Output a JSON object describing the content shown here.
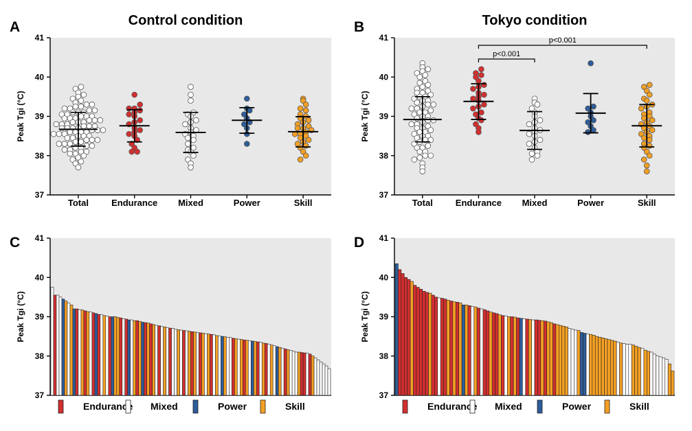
{
  "colors": {
    "Endurance": "#d32f2f",
    "Mixed": "#ffffff",
    "Power": "#2e5d9a",
    "Skill": "#f4a024",
    "Total": "#ffffff"
  },
  "legend": [
    "Endurance",
    "Mixed",
    "Power",
    "Skill"
  ],
  "chart_data": [
    {
      "panel": "A",
      "type": "scatter",
      "title": "Control condition",
      "ylabel": "Peak Tgi (°C)",
      "ylim": [
        37,
        41
      ],
      "yticks": [
        "37",
        "38",
        "39",
        "40",
        "41"
      ],
      "categories": [
        "Total",
        "Endurance",
        "Mixed",
        "Power",
        "Skill"
      ],
      "series": [
        {
          "name": "Total",
          "mean": 38.67,
          "sd_low": 38.24,
          "sd_high": 39.1,
          "values": [
            37.7,
            37.8,
            37.85,
            37.9,
            37.95,
            38.0,
            38.05,
            38.05,
            38.1,
            38.1,
            38.15,
            38.15,
            38.2,
            38.2,
            38.25,
            38.25,
            38.3,
            38.3,
            38.3,
            38.35,
            38.35,
            38.4,
            38.4,
            38.4,
            38.45,
            38.45,
            38.5,
            38.5,
            38.5,
            38.55,
            38.55,
            38.55,
            38.6,
            38.6,
            38.6,
            38.6,
            38.65,
            38.65,
            38.65,
            38.7,
            38.7,
            38.7,
            38.7,
            38.75,
            38.75,
            38.75,
            38.8,
            38.8,
            38.8,
            38.85,
            38.85,
            38.85,
            38.9,
            38.9,
            38.9,
            38.95,
            38.95,
            38.95,
            39.0,
            39.0,
            39.0,
            39.05,
            39.05,
            39.1,
            39.1,
            39.1,
            39.15,
            39.15,
            39.2,
            39.2,
            39.25,
            39.25,
            39.3,
            39.3,
            39.35,
            39.4,
            39.45,
            39.5,
            39.55,
            39.6,
            39.7,
            39.75
          ]
        },
        {
          "name": "Endurance",
          "mean": 38.76,
          "sd_low": 38.35,
          "sd_high": 39.17,
          "values": [
            38.1,
            38.1,
            38.2,
            38.3,
            38.4,
            38.5,
            38.55,
            38.6,
            38.65,
            38.7,
            38.8,
            38.85,
            38.9,
            39.0,
            39.05,
            39.1,
            39.15,
            39.2,
            39.2,
            39.3,
            39.55
          ]
        },
        {
          "name": "Mixed",
          "mean": 38.59,
          "sd_low": 38.08,
          "sd_high": 39.1,
          "values": [
            37.7,
            37.8,
            37.9,
            38.0,
            38.1,
            38.15,
            38.2,
            38.3,
            38.4,
            38.45,
            38.5,
            38.55,
            38.6,
            38.65,
            38.7,
            38.8,
            38.85,
            38.9,
            39.0,
            39.05,
            39.1,
            39.4,
            39.55,
            39.75
          ]
        },
        {
          "name": "Power",
          "mean": 38.9,
          "sd_low": 38.57,
          "sd_high": 39.22,
          "values": [
            38.3,
            38.55,
            38.7,
            38.8,
            38.85,
            38.95,
            39.05,
            39.15,
            39.2,
            39.45
          ]
        },
        {
          "name": "Skill",
          "mean": 38.61,
          "sd_low": 38.22,
          "sd_high": 38.99,
          "values": [
            37.9,
            38.0,
            38.1,
            38.2,
            38.25,
            38.3,
            38.35,
            38.4,
            38.45,
            38.5,
            38.55,
            38.55,
            38.6,
            38.65,
            38.7,
            38.7,
            38.75,
            38.8,
            38.85,
            38.9,
            38.95,
            39.0,
            39.05,
            39.15,
            39.2,
            39.3,
            39.4,
            39.45
          ]
        }
      ]
    },
    {
      "panel": "B",
      "type": "scatter",
      "title": "Tokyo condition",
      "ylabel": "Peak Tgi (°C)",
      "ylim": [
        37,
        41
      ],
      "yticks": [
        "37",
        "38",
        "39",
        "40",
        "41"
      ],
      "categories": [
        "Total",
        "Endurance",
        "Mixed",
        "Power",
        "Skill"
      ],
      "comparisons": [
        {
          "from": "Endurance",
          "to": "Mixed",
          "label": "p<0.001"
        },
        {
          "from": "Endurance",
          "to": "Skill",
          "label": "p<0.001"
        }
      ],
      "series": [
        {
          "name": "Total",
          "mean": 38.92,
          "sd_low": 38.35,
          "sd_high": 39.5,
          "values": [
            37.6,
            37.7,
            37.8,
            37.9,
            37.95,
            38.0,
            38.0,
            38.1,
            38.1,
            38.2,
            38.2,
            38.25,
            38.3,
            38.35,
            38.4,
            38.4,
            38.45,
            38.5,
            38.5,
            38.55,
            38.6,
            38.6,
            38.65,
            38.7,
            38.7,
            38.75,
            38.8,
            38.8,
            38.85,
            38.9,
            38.9,
            38.95,
            39.0,
            39.0,
            39.05,
            39.1,
            39.1,
            39.15,
            39.2,
            39.2,
            39.25,
            39.3,
            39.3,
            39.35,
            39.4,
            39.4,
            39.45,
            39.5,
            39.5,
            39.55,
            39.6,
            39.6,
            39.65,
            39.7,
            39.75,
            39.8,
            39.85,
            39.9,
            40.0,
            40.05,
            40.1,
            40.15,
            40.2,
            40.25,
            40.35
          ]
        },
        {
          "name": "Endurance",
          "mean": 39.38,
          "sd_low": 38.92,
          "sd_high": 39.83,
          "values": [
            38.6,
            38.7,
            38.8,
            38.9,
            38.95,
            39.05,
            39.1,
            39.2,
            39.25,
            39.3,
            39.4,
            39.45,
            39.5,
            39.55,
            39.6,
            39.7,
            39.75,
            39.8,
            39.9,
            40.0,
            40.05,
            40.1,
            40.2
          ]
        },
        {
          "name": "Mixed",
          "mean": 38.64,
          "sd_low": 38.16,
          "sd_high": 39.12,
          "values": [
            37.9,
            38.0,
            38.05,
            38.1,
            38.2,
            38.3,
            38.35,
            38.4,
            38.5,
            38.55,
            38.6,
            38.65,
            38.7,
            38.8,
            38.85,
            38.9,
            39.0,
            39.1,
            39.2,
            39.3,
            39.35,
            39.45
          ]
        },
        {
          "name": "Power",
          "mean": 39.08,
          "sd_low": 38.58,
          "sd_high": 39.58,
          "values": [
            38.6,
            38.65,
            38.75,
            38.85,
            38.9,
            39.0,
            39.1,
            39.2,
            39.25,
            40.35
          ]
        },
        {
          "name": "Skill",
          "mean": 38.76,
          "sd_low": 38.22,
          "sd_high": 39.3,
          "values": [
            37.6,
            37.75,
            37.9,
            38.0,
            38.1,
            38.2,
            38.25,
            38.3,
            38.4,
            38.45,
            38.5,
            38.55,
            38.6,
            38.65,
            38.7,
            38.75,
            38.8,
            38.85,
            38.9,
            38.95,
            39.0,
            39.05,
            39.1,
            39.2,
            39.25,
            39.3,
            39.4,
            39.45,
            39.55,
            39.65,
            39.75,
            39.8
          ]
        }
      ]
    },
    {
      "panel": "C",
      "type": "bar",
      "title": "",
      "ylabel": "Peak Tgi (°C)",
      "ylim": [
        37,
        41
      ],
      "yticks": [
        "37",
        "38",
        "39",
        "40",
        "41"
      ],
      "sorted_descending": true,
      "bars": [
        [
          "M",
          39.75
        ],
        [
          "E",
          39.55
        ],
        [
          "M",
          39.55
        ],
        [
          "M",
          39.5
        ],
        [
          "P",
          39.45
        ],
        [
          "S",
          39.4
        ],
        [
          "M",
          39.35
        ],
        [
          "S",
          39.3
        ],
        [
          "P",
          39.2
        ],
        [
          "E",
          39.2
        ],
        [
          "M",
          39.18
        ],
        [
          "S",
          39.17
        ],
        [
          "E",
          39.15
        ],
        [
          "S",
          39.13
        ],
        [
          "M",
          39.12
        ],
        [
          "E",
          39.1
        ],
        [
          "P",
          39.08
        ],
        [
          "E",
          39.06
        ],
        [
          "M",
          39.05
        ],
        [
          "S",
          39.03
        ],
        [
          "M",
          39.02
        ],
        [
          "E",
          39.0
        ],
        [
          "P",
          39.0
        ],
        [
          "S",
          39.0
        ],
        [
          "S",
          38.98
        ],
        [
          "E",
          38.97
        ],
        [
          "M",
          38.95
        ],
        [
          "E",
          38.94
        ],
        [
          "P",
          38.92
        ],
        [
          "M",
          38.92
        ],
        [
          "S",
          38.9
        ],
        [
          "E",
          38.9
        ],
        [
          "S",
          38.88
        ],
        [
          "P",
          38.86
        ],
        [
          "E",
          38.85
        ],
        [
          "S",
          38.84
        ],
        [
          "E",
          38.82
        ],
        [
          "S",
          38.8
        ],
        [
          "M",
          38.78
        ],
        [
          "E",
          38.77
        ],
        [
          "M",
          38.75
        ],
        [
          "S",
          38.74
        ],
        [
          "M",
          38.72
        ],
        [
          "E",
          38.71
        ],
        [
          "M",
          38.7
        ],
        [
          "M",
          38.68
        ],
        [
          "S",
          38.67
        ],
        [
          "M",
          38.66
        ],
        [
          "E",
          38.65
        ],
        [
          "M",
          38.64
        ],
        [
          "S",
          38.63
        ],
        [
          "E",
          38.62
        ],
        [
          "S",
          38.61
        ],
        [
          "M",
          38.6
        ],
        [
          "E",
          38.59
        ],
        [
          "S",
          38.58
        ],
        [
          "M",
          38.57
        ],
        [
          "S",
          38.56
        ],
        [
          "E",
          38.55
        ],
        [
          "M",
          38.54
        ],
        [
          "S",
          38.52
        ],
        [
          "M",
          38.51
        ],
        [
          "P",
          38.5
        ],
        [
          "S",
          38.49
        ],
        [
          "M",
          38.48
        ],
        [
          "M",
          38.47
        ],
        [
          "E",
          38.45
        ],
        [
          "S",
          38.44
        ],
        [
          "M",
          38.43
        ],
        [
          "S",
          38.42
        ],
        [
          "E",
          38.41
        ],
        [
          "S",
          38.4
        ],
        [
          "M",
          38.39
        ],
        [
          "P",
          38.38
        ],
        [
          "S",
          38.37
        ],
        [
          "E",
          38.36
        ],
        [
          "M",
          38.35
        ],
        [
          "S",
          38.33
        ],
        [
          "E",
          38.32
        ],
        [
          "M",
          38.3
        ],
        [
          "S",
          38.28
        ],
        [
          "M",
          38.26
        ],
        [
          "P",
          38.24
        ],
        [
          "S",
          38.22
        ],
        [
          "M",
          38.2
        ],
        [
          "E",
          38.18
        ],
        [
          "S",
          38.16
        ],
        [
          "M",
          38.14
        ],
        [
          "M",
          38.12
        ],
        [
          "M",
          38.1
        ],
        [
          "S",
          38.1
        ],
        [
          "E",
          38.09
        ],
        [
          "E",
          38.08
        ],
        [
          "M",
          38.07
        ],
        [
          "E",
          38.05
        ],
        [
          "S",
          38.0
        ],
        [
          "M",
          37.95
        ],
        [
          "M",
          37.9
        ],
        [
          "M",
          37.85
        ],
        [
          "M",
          37.8
        ],
        [
          "M",
          37.75
        ],
        [
          "M",
          37.68
        ]
      ]
    },
    {
      "panel": "D",
      "type": "bar",
      "title": "",
      "ylabel": "Peak Tgi (°C)",
      "ylim": [
        37,
        41
      ],
      "yticks": [
        "37",
        "38",
        "39",
        "40",
        "41"
      ],
      "sorted_descending": true,
      "bars": [
        [
          "P",
          40.35
        ],
        [
          "E",
          40.2
        ],
        [
          "E",
          40.1
        ],
        [
          "E",
          40.0
        ],
        [
          "E",
          39.95
        ],
        [
          "S",
          39.9
        ],
        [
          "E",
          39.8
        ],
        [
          "E",
          39.75
        ],
        [
          "E",
          39.7
        ],
        [
          "E",
          39.65
        ],
        [
          "E",
          39.62
        ],
        [
          "S",
          39.6
        ],
        [
          "E",
          39.55
        ],
        [
          "E",
          39.5
        ],
        [
          "M",
          39.48
        ],
        [
          "E",
          39.47
        ],
        [
          "E",
          39.45
        ],
        [
          "S",
          39.42
        ],
        [
          "E",
          39.4
        ],
        [
          "S",
          39.38
        ],
        [
          "E",
          39.37
        ],
        [
          "S",
          39.35
        ],
        [
          "P",
          39.3
        ],
        [
          "S",
          39.3
        ],
        [
          "E",
          39.28
        ],
        [
          "M",
          39.26
        ],
        [
          "S",
          39.25
        ],
        [
          "E",
          39.22
        ],
        [
          "M",
          39.2
        ],
        [
          "E",
          39.18
        ],
        [
          "E",
          39.15
        ],
        [
          "S",
          39.12
        ],
        [
          "E",
          39.1
        ],
        [
          "E",
          39.08
        ],
        [
          "S",
          39.05
        ],
        [
          "E",
          39.03
        ],
        [
          "M",
          39.02
        ],
        [
          "S",
          39.0
        ],
        [
          "E",
          39.0
        ],
        [
          "S",
          38.99
        ],
        [
          "E",
          38.97
        ],
        [
          "P",
          38.96
        ],
        [
          "M",
          38.95
        ],
        [
          "E",
          38.94
        ],
        [
          "S",
          38.93
        ],
        [
          "M",
          38.92
        ],
        [
          "E",
          38.92
        ],
        [
          "E",
          38.91
        ],
        [
          "S",
          38.9
        ],
        [
          "E",
          38.89
        ],
        [
          "S",
          38.87
        ],
        [
          "S",
          38.85
        ],
        [
          "E",
          38.82
        ],
        [
          "S",
          38.8
        ],
        [
          "S",
          38.78
        ],
        [
          "S",
          38.76
        ],
        [
          "S",
          38.74
        ],
        [
          "M",
          38.7
        ],
        [
          "M",
          38.68
        ],
        [
          "M",
          38.66
        ],
        [
          "S",
          38.65
        ],
        [
          "P",
          38.6
        ],
        [
          "P",
          38.58
        ],
        [
          "M",
          38.56
        ],
        [
          "S",
          38.55
        ],
        [
          "S",
          38.53
        ],
        [
          "S",
          38.5
        ],
        [
          "S",
          38.48
        ],
        [
          "S",
          38.46
        ],
        [
          "S",
          38.44
        ],
        [
          "S",
          38.42
        ],
        [
          "S",
          38.4
        ],
        [
          "S",
          38.38
        ],
        [
          "M",
          38.35
        ],
        [
          "S",
          38.33
        ],
        [
          "M",
          38.32
        ],
        [
          "M",
          38.3
        ],
        [
          "M",
          38.3
        ],
        [
          "S",
          38.28
        ],
        [
          "S",
          38.25
        ],
        [
          "S",
          38.22
        ],
        [
          "M",
          38.2
        ],
        [
          "S",
          38.15
        ],
        [
          "S",
          38.12
        ],
        [
          "M",
          38.1
        ],
        [
          "M",
          38.05
        ],
        [
          "M",
          38.0
        ],
        [
          "M",
          37.98
        ],
        [
          "M",
          37.95
        ],
        [
          "M",
          37.92
        ],
        [
          "S",
          37.8
        ],
        [
          "S",
          37.62
        ]
      ]
    }
  ]
}
